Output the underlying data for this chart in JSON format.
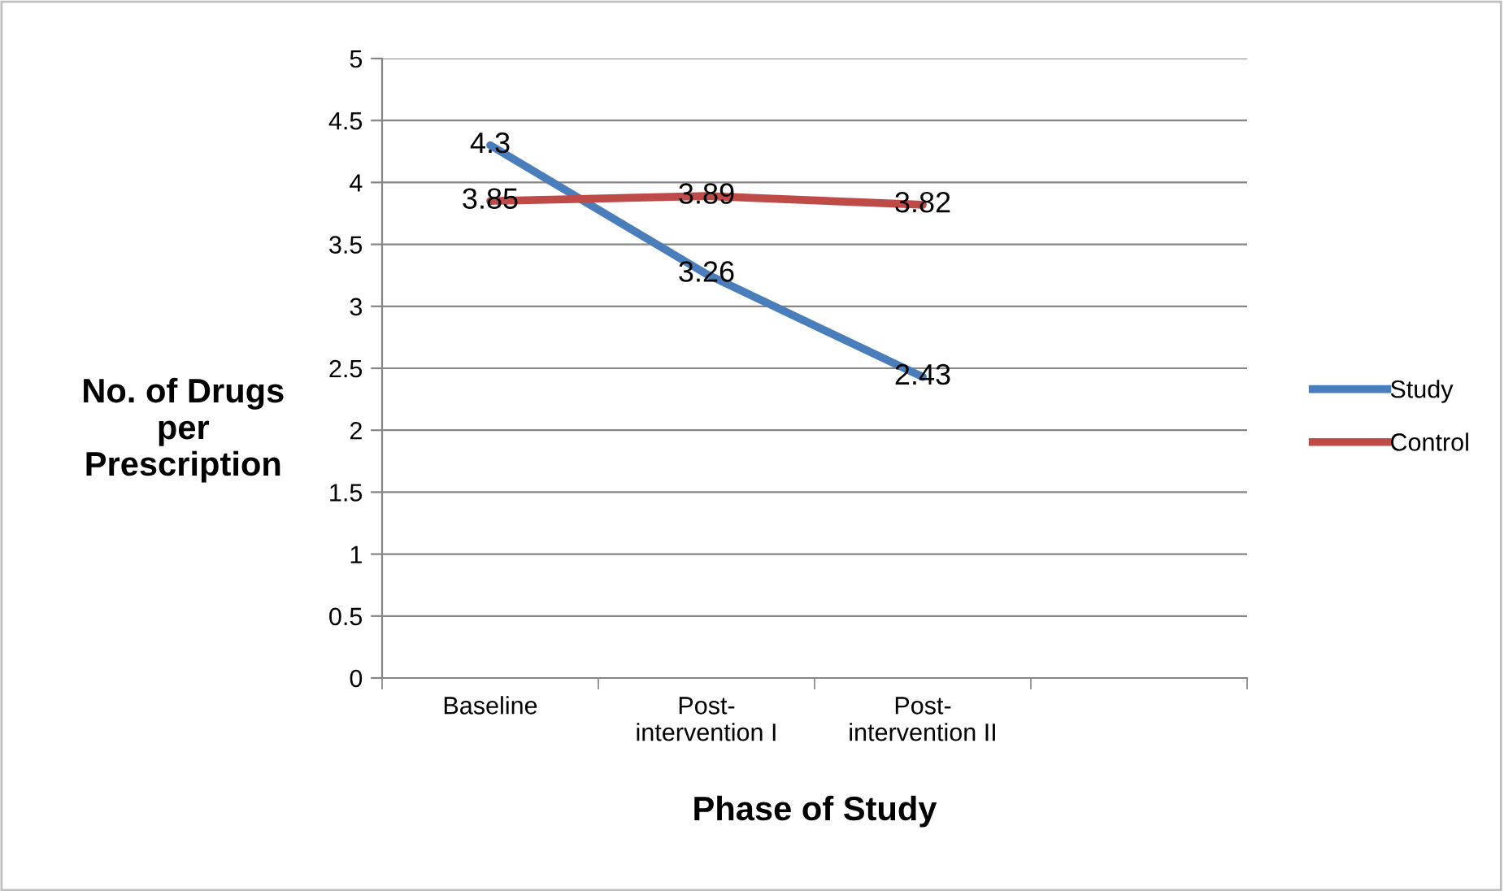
{
  "chart_data": {
    "type": "line",
    "xlabel": "Phase of Study",
    "ylabel": "No. of Drugs\nper\nPrescription",
    "categories": [
      "Baseline",
      "Post-\nintervention I",
      "Post-\nintervention II",
      null
    ],
    "series": [
      {
        "name": "Study",
        "color": "#4a7ebb",
        "values": [
          4.3,
          3.26,
          2.43,
          null
        ]
      },
      {
        "name": "Control",
        "color": "#be4b48",
        "values": [
          3.85,
          3.89,
          3.82,
          null
        ]
      }
    ],
    "ylim": [
      0,
      5
    ],
    "yticks": [
      0,
      0.5,
      1,
      1.5,
      2,
      2.5,
      3,
      3.5,
      4,
      4.5,
      5
    ],
    "grid": "y",
    "legend": "right",
    "marker": "none",
    "line_style": "solid",
    "data_labels": true
  }
}
